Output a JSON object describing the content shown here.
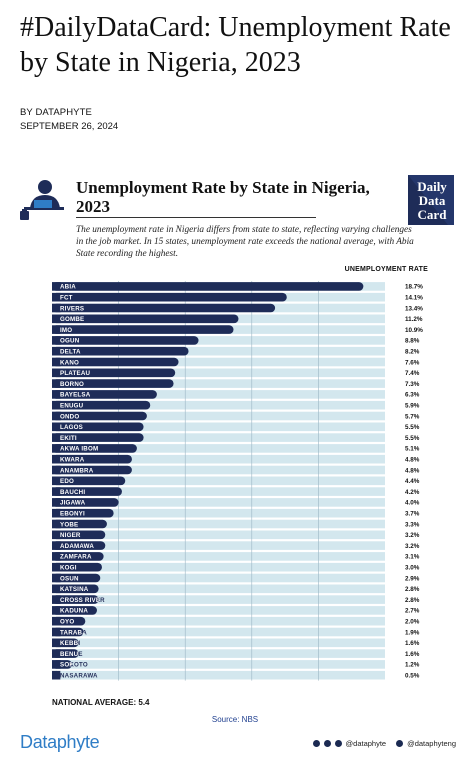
{
  "article": {
    "headline": "#DailyDataCard: Unemployment Rate by State in Nigeria, 2023",
    "byline": "BY DATAPHYTE",
    "date": "SEPTEMBER 26, 2024"
  },
  "card": {
    "title": "Unemployment Rate by State in Nigeria, 2023",
    "badge_lines": [
      "Daily",
      "Data",
      "Card"
    ],
    "description": "The unemployment rate in Nigeria differs from state to state, reflecting varying challenges in the job market. In 15 states, unemployment rate exceeds the national average, with Abia State recording the highest.",
    "column_header": "UNEMPLOYMENT RATE",
    "national_average": "NATIONAL AVERAGE: 5.4",
    "source": "Source: NBS",
    "brand": "Dataphyte",
    "social_handle_1": "@dataphyte",
    "social_handle_2": "@dataphyteng"
  },
  "colors": {
    "bar": "#1e2c58",
    "track": "#d3e7ee",
    "gridline": "#9bb6c4",
    "brand": "#2f7dc6"
  },
  "chart_data": {
    "type": "bar",
    "orientation": "horizontal",
    "title": "Unemployment Rate by State in Nigeria, 2023",
    "value_label": "UNEMPLOYMENT RATE",
    "xlim": [
      0,
      20
    ],
    "grid": true,
    "national_average": 5.4,
    "categories": [
      "ABIA",
      "FCT",
      "RIVERS",
      "GOMBE",
      "IMO",
      "OGUN",
      "DELTA",
      "KANO",
      "PLATEAU",
      "BORNO",
      "BAYELSA",
      "ENUGU",
      "ONDO",
      "LAGOS",
      "EKITI",
      "AKWA IBOM",
      "KWARA",
      "ANAMBRA",
      "EDO",
      "BAUCHI",
      "JIGAWA",
      "EBONYI",
      "YOBE",
      "NIGER",
      "ADAMAWA",
      "ZAMFARA",
      "KOGI",
      "OSUN",
      "KATSINA",
      "CROSS RIVER",
      "KADUNA",
      "OYO",
      "TARABA",
      "KEBBI",
      "BENUE",
      "SOKOTO",
      "NASARAWA"
    ],
    "values": [
      18.7,
      14.1,
      13.4,
      11.2,
      10.9,
      8.8,
      8.2,
      7.6,
      7.4,
      7.3,
      6.3,
      5.9,
      5.7,
      5.5,
      5.5,
      5.1,
      4.8,
      4.8,
      4.4,
      4.2,
      4.0,
      3.7,
      3.3,
      3.2,
      3.2,
      3.1,
      3.0,
      2.9,
      2.8,
      2.8,
      2.7,
      2.0,
      1.9,
      1.6,
      1.6,
      1.2,
      0.5
    ],
    "value_labels": [
      "18.7%",
      "14.1%",
      "13.4%",
      "11.2%",
      "10.9%",
      "8.8%",
      "8.2%",
      "7.6%",
      "7.4%",
      "7.3%",
      "6.3%",
      "5.9%",
      "5.7%",
      "5.5%",
      "5.5%",
      "5.1%",
      "4.8%",
      "4.8%",
      "4.4%",
      "4.2%",
      "4.0%",
      "3.7%",
      "3.3%",
      "3.2%",
      "3.2%",
      "3.1%",
      "3.0%",
      "2.9%",
      "2.8%",
      "2.8%",
      "2.7%",
      "2.0%",
      "1.9%",
      "1.6%",
      "1.6%",
      "1.2%",
      "0.5%"
    ]
  }
}
